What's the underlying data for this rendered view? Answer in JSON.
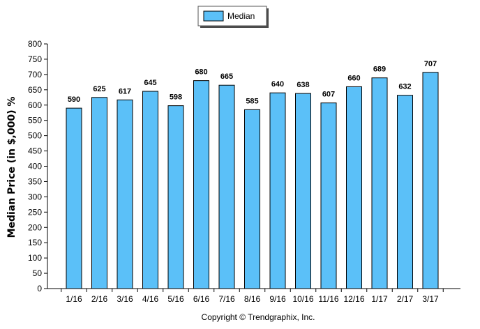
{
  "chart_data": {
    "type": "bar",
    "categories": [
      "1/16",
      "2/16",
      "3/16",
      "4/16",
      "5/16",
      "6/16",
      "7/16",
      "8/16",
      "9/16",
      "10/16",
      "11/16",
      "12/16",
      "1/17",
      "2/17",
      "3/17"
    ],
    "series": [
      {
        "name": "Median",
        "values": [
          590,
          625,
          617,
          645,
          598,
          680,
          665,
          585,
          640,
          638,
          607,
          660,
          689,
          632,
          707
        ]
      }
    ],
    "data_labels": [
      "590",
      "625",
      "617",
      "645",
      "598",
      "680",
      "665",
      "585",
      "640",
      "638",
      "607",
      "660",
      "689",
      "632",
      "707"
    ],
    "yticks": [
      "0",
      "50",
      "100",
      "150",
      "200",
      "250",
      "300",
      "350",
      "400",
      "450",
      "500",
      "550",
      "600",
      "650",
      "700",
      "750",
      "800"
    ],
    "ylim": [
      0,
      800
    ],
    "ytick_step": 50,
    "xlabel": "",
    "ylabel": "Median Price (in $,000) %",
    "legend_position": "top-center",
    "grid": false,
    "colors": {
      "bar": "#5bc0f8",
      "bar_edge": "#000000",
      "axis": "#000000"
    }
  },
  "footer": {
    "copyright": "Copyright © Trendgraphix, Inc."
  }
}
